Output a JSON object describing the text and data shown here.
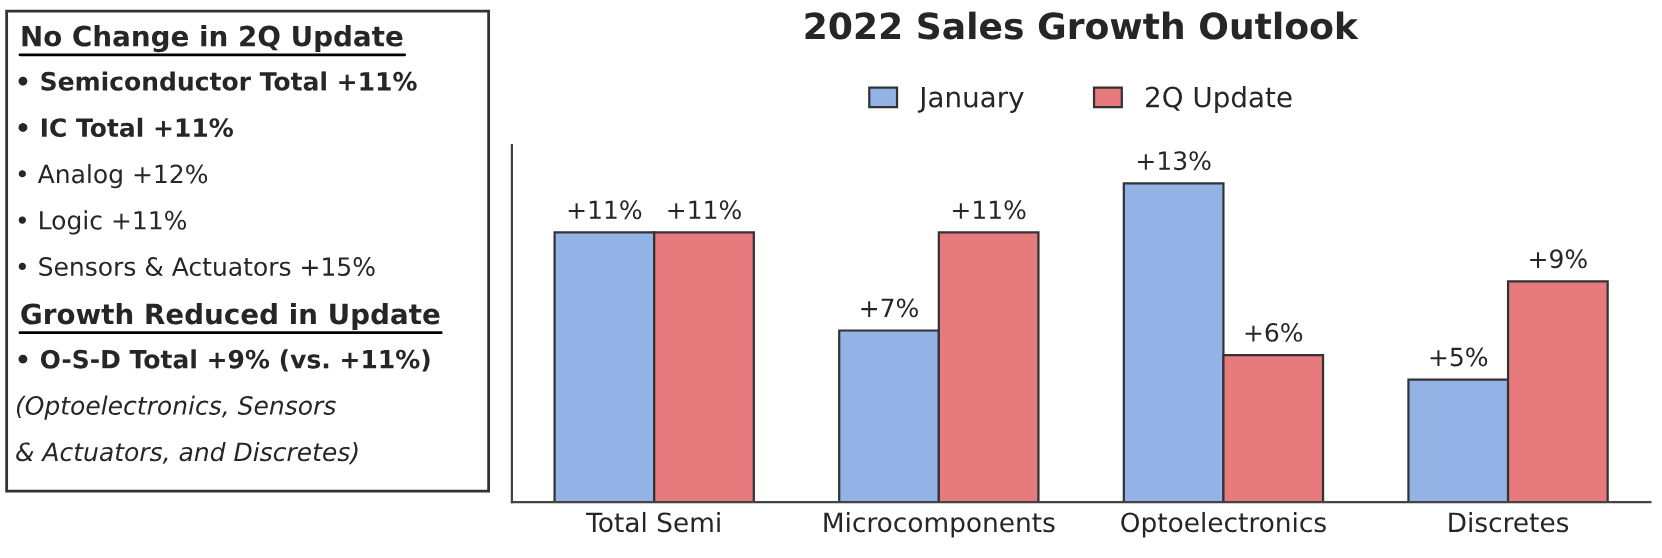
{
  "chart_data": {
    "type": "bar",
    "title": "2022 Sales Growth Outlook",
    "categories": [
      "Total Semi",
      "Microcomponents",
      "Optoelectronics",
      "Discretes"
    ],
    "series": [
      {
        "name": "January",
        "color": "#93b3e6",
        "values": [
          11,
          7,
          13,
          5
        ],
        "value_labels": [
          "+11%",
          "+7%",
          "+13%",
          "+5%"
        ]
      },
      {
        "name": "2Q Update",
        "color": "#e67a7c",
        "values": [
          11,
          11,
          6,
          9
        ],
        "value_labels": [
          "+11%",
          "+11%",
          "+6%",
          "+9%"
        ]
      }
    ],
    "legend": "top",
    "grid": false,
    "annotations": [
      "No Change in 2Q Update",
      "• Semiconductor Total +11%",
      "• IC Total +11%",
      "• Analog +12%",
      "• Logic +11%",
      "• Sensors & Actuators +15%",
      "Growth Reduced in Update",
      "• O-S-D Total +9% (vs. +11%)",
      "(Optoelectronics, Sensors",
      "& Actuators, and Discretes)"
    ]
  }
}
